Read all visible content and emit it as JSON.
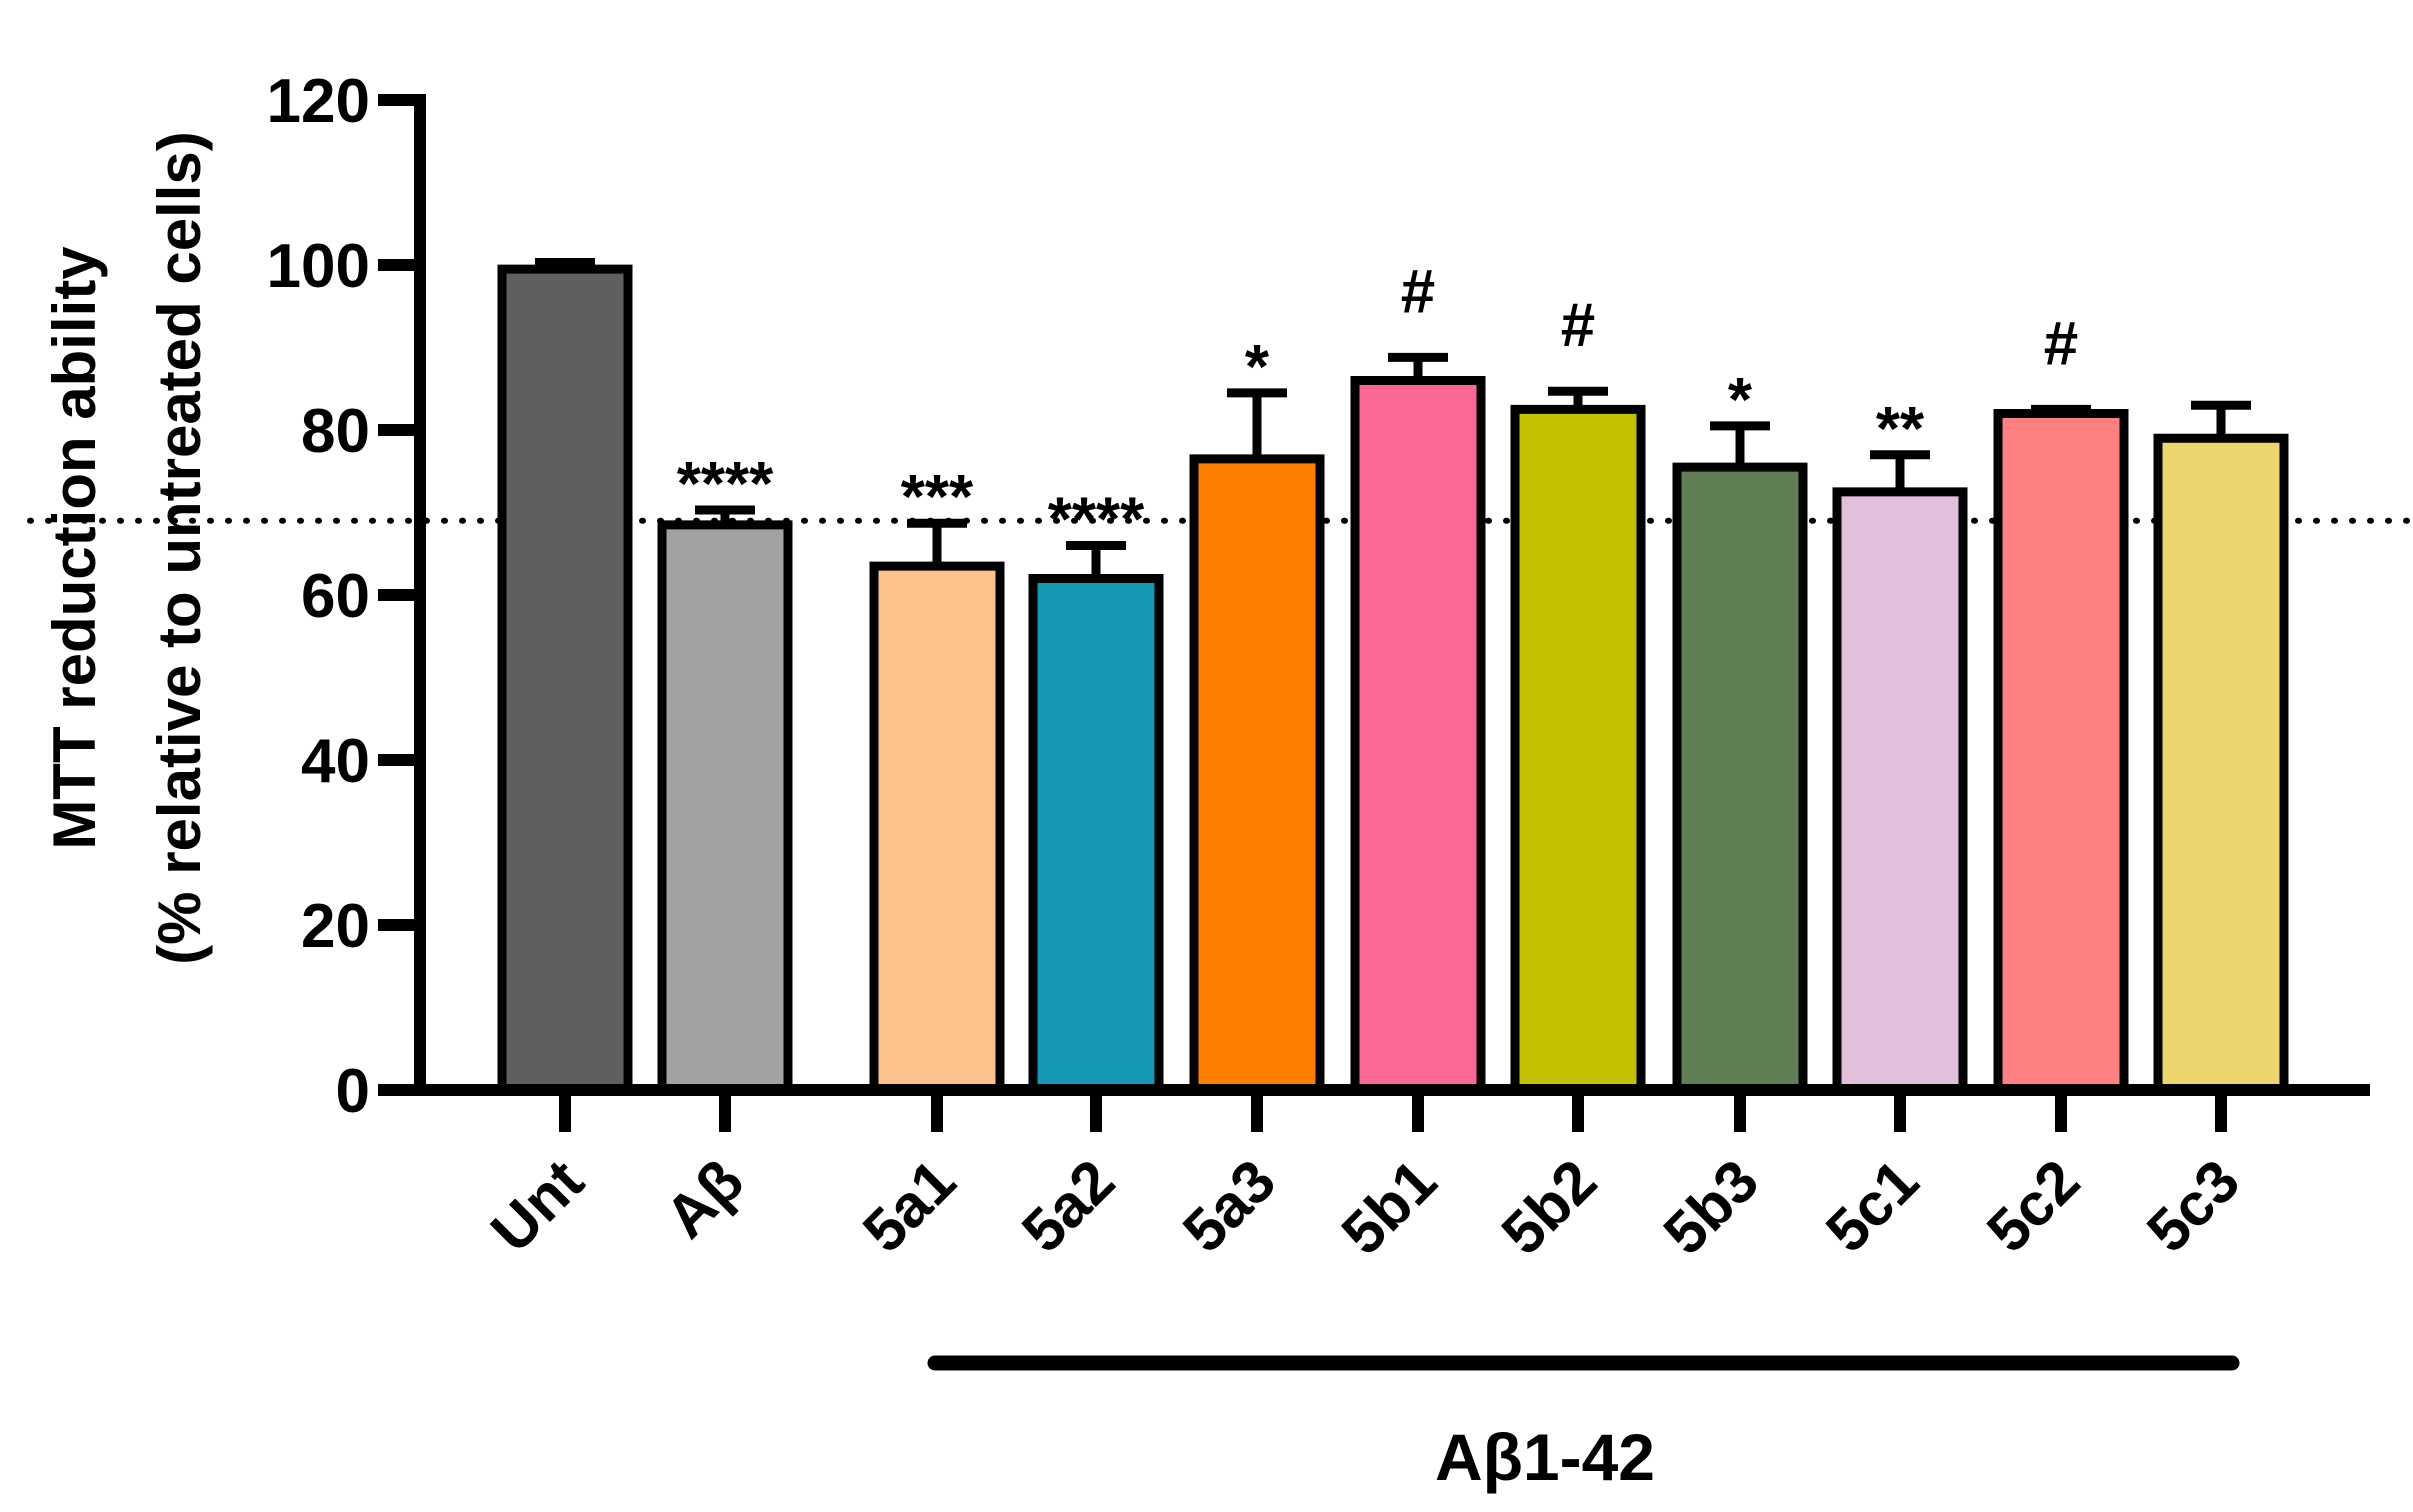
{
  "chart_data": {
    "type": "bar",
    "title": "",
    "ylabel_lines": [
      "MTT reduction ability",
      "(% relative to untreated cells)"
    ],
    "xlabel": "",
    "ylim": [
      0,
      120
    ],
    "yticks": [
      "0",
      "20",
      "40",
      "60",
      "80",
      "100",
      "120"
    ],
    "categories": [
      "Unt",
      "Aβ",
      "5a1",
      "5a2",
      "5a3",
      "5b1",
      "5b2",
      "5b3",
      "5c1",
      "5c2",
      "5c3"
    ],
    "values": [
      99.5,
      68.5,
      63.5,
      62,
      76.5,
      86,
      82.5,
      75.5,
      72.5,
      82,
      79
    ],
    "errors": [
      0.8,
      1.8,
      5.2,
      4,
      8,
      2.8,
      2.2,
      5,
      4.5,
      0.5,
      4
    ],
    "annotations": [
      "",
      "****",
      "***",
      "****",
      "*",
      "#",
      "#",
      "*",
      "**",
      "#",
      ""
    ],
    "colors": [
      "#5f5f5f",
      "#a2a2a5",
      "#fec28a",
      "#1698b5",
      "#fe7e00",
      "#fa6893",
      "#c2c100",
      "#607f55",
      "#e2c0db",
      "#fd8181",
      "#ebd56c"
    ],
    "reference_line": 69,
    "group_label": "Aβ1-42"
  }
}
